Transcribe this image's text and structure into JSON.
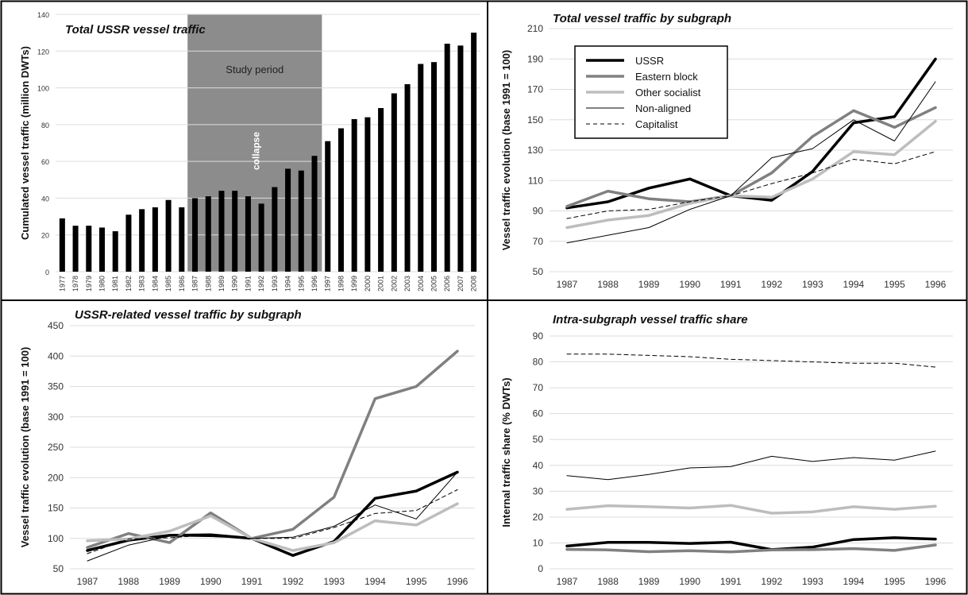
{
  "colors": {
    "USSR": "#000000",
    "Eastern block": "#808080",
    "Other socialist": "#bdbdbd",
    "Non-aligned": "#000000",
    "Capitalist": "#000000",
    "study_shade": "#8c8c8c",
    "grid": "#dcdcdc",
    "bar": "#000000"
  },
  "chart_data": [
    {
      "type": "bar",
      "title": "Total USSR vessel traffic",
      "ylabel": "Cumulated vessel traffic (million DWTs)",
      "xlabel": "",
      "ylim": [
        0,
        140
      ],
      "yticks": [
        0,
        20,
        40,
        60,
        80,
        100,
        120,
        140
      ],
      "categories": [
        "1977",
        "1978",
        "1979",
        "1980",
        "1981",
        "1982",
        "1983",
        "1984",
        "1985",
        "1986",
        "1987",
        "1988",
        "1989",
        "1990",
        "1991",
        "1992",
        "1993",
        "1994",
        "1995",
        "1996",
        "1997",
        "1998",
        "1999",
        "2000",
        "2001",
        "2002",
        "2003",
        "2004",
        "2005",
        "2006",
        "2007",
        "2008"
      ],
      "values": [
        29,
        25,
        25,
        24,
        22,
        31,
        34,
        35,
        39,
        35,
        40,
        41,
        44,
        44,
        41,
        37,
        46,
        56,
        55,
        63,
        71,
        78,
        83,
        84,
        89,
        97,
        102,
        113,
        114,
        124,
        123,
        130
      ],
      "grid": true,
      "annotations": [
        {
          "text": "Study period",
          "from": "1987",
          "to": "1996"
        },
        {
          "text": "collapse",
          "at": "1991"
        }
      ]
    },
    {
      "type": "line",
      "title": "Total vessel traffic by subgraph",
      "ylabel": "Vessel traffic evolution (base 1991 = 100)",
      "xlabel": "",
      "ylim": [
        50,
        210
      ],
      "yticks": [
        50,
        70,
        90,
        110,
        130,
        150,
        170,
        190,
        210
      ],
      "x": [
        "1987",
        "1988",
        "1989",
        "1990",
        "1991",
        "1992",
        "1993",
        "1994",
        "1995",
        "1996"
      ],
      "legend": "top-left",
      "series": [
        {
          "name": "USSR",
          "values": [
            92,
            96,
            105,
            111,
            100,
            97,
            116,
            148,
            152,
            190
          ]
        },
        {
          "name": "Eastern block",
          "values": [
            93,
            103,
            98,
            96,
            100,
            115,
            139,
            156,
            145,
            158
          ]
        },
        {
          "name": "Other socialist",
          "values": [
            79,
            84,
            87,
            95,
            100,
            99,
            111,
            129,
            127,
            149
          ]
        },
        {
          "name": "Non-aligned",
          "values": [
            69,
            74,
            79,
            91,
            100,
            125,
            131,
            150,
            136,
            175
          ]
        },
        {
          "name": "Capitalist",
          "values": [
            85,
            90,
            91,
            96,
            100,
            108,
            115,
            124,
            121,
            129
          ]
        }
      ]
    },
    {
      "type": "line",
      "title": "USSR-related vessel traffic by subgraph",
      "ylabel": "Vessel traffic evolution (base 1991 = 100)",
      "xlabel": "",
      "ylim": [
        50,
        450
      ],
      "yticks": [
        50,
        100,
        150,
        200,
        250,
        300,
        350,
        400,
        450
      ],
      "x": [
        "1987",
        "1988",
        "1989",
        "1990",
        "1991",
        "1992",
        "1993",
        "1994",
        "1995",
        "1996"
      ],
      "series": [
        {
          "name": "USSR",
          "values": [
            80,
            97,
            105,
            106,
            100,
            72,
            95,
            166,
            178,
            209
          ]
        },
        {
          "name": "Eastern block",
          "values": [
            85,
            108,
            93,
            142,
            100,
            115,
            168,
            330,
            350,
            408
          ]
        },
        {
          "name": "Other socialist",
          "values": [
            96,
            99,
            112,
            137,
            100,
            80,
            93,
            129,
            122,
            157
          ]
        },
        {
          "name": "Non-aligned",
          "values": [
            63,
            89,
            104,
            103,
            100,
            102,
            120,
            155,
            132,
            209
          ]
        },
        {
          "name": "Capitalist",
          "values": [
            75,
            99,
            101,
            106,
            100,
            100,
            118,
            141,
            146,
            180
          ]
        }
      ]
    },
    {
      "type": "line",
      "title": "Intra-subgraph vessel traffic share",
      "ylabel": "Internal traffic share (% DWTs)",
      "xlabel": "",
      "ylim": [
        0,
        90
      ],
      "yticks": [
        0,
        10,
        20,
        30,
        40,
        50,
        60,
        70,
        80,
        90
      ],
      "x": [
        "1987",
        "1988",
        "1989",
        "1990",
        "1991",
        "1992",
        "1993",
        "1994",
        "1995",
        "1996"
      ],
      "series": [
        {
          "name": "USSR",
          "values": [
            8.8,
            10.2,
            10.2,
            9.8,
            10.3,
            7.4,
            8.4,
            11.3,
            12.0,
            11.5
          ]
        },
        {
          "name": "Eastern block",
          "values": [
            7.5,
            7.3,
            6.6,
            7.0,
            6.5,
            7.3,
            7.4,
            7.8,
            7.1,
            9.2
          ]
        },
        {
          "name": "Other socialist",
          "values": [
            23.0,
            24.4,
            24.0,
            23.5,
            24.5,
            21.5,
            22.0,
            24.0,
            23.0,
            24.2
          ]
        },
        {
          "name": "Non-aligned",
          "values": [
            36.0,
            34.5,
            36.5,
            39.0,
            39.5,
            43.5,
            41.5,
            43.0,
            42.0,
            45.5
          ]
        },
        {
          "name": "Capitalist",
          "values": [
            83.0,
            83.0,
            82.5,
            82.0,
            81.0,
            80.5,
            80.0,
            79.5,
            79.5,
            78.0
          ]
        }
      ]
    }
  ]
}
